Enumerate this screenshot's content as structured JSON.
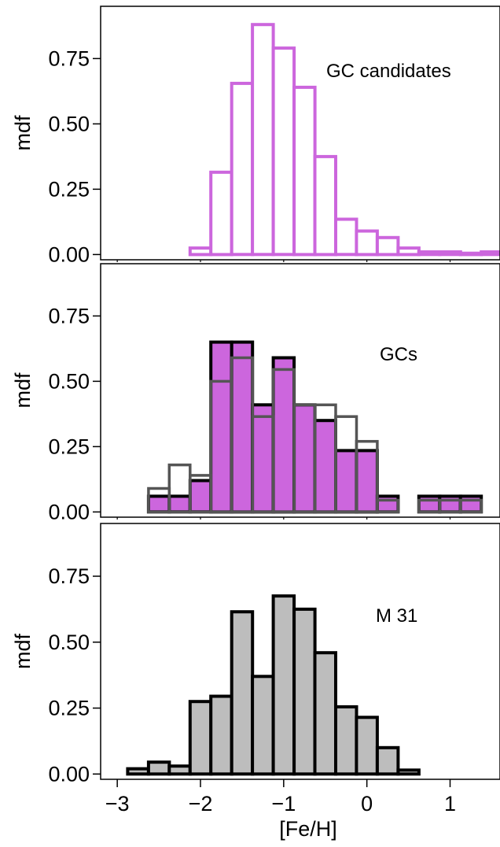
{
  "figure": {
    "xlabel": "[Fe/H]",
    "xlim": [
      -3.2,
      1.6
    ],
    "xticks": [
      -3,
      -2,
      -1,
      0,
      1
    ],
    "xtick_labels": [
      "−3",
      "−2",
      "−1",
      "0",
      "1"
    ],
    "ylim": [
      -0.02,
      0.95
    ],
    "yticks": [
      0.0,
      0.25,
      0.5,
      0.75
    ],
    "ytick_labels": [
      "0.00",
      "0.25",
      "0.50",
      "0.75"
    ],
    "ylabel": "mdf"
  },
  "chart_data": [
    {
      "type": "bar",
      "panel": "top",
      "label": "GC candidates",
      "xlabel": "",
      "ylabel": "mdf",
      "bin_edges": [
        -2.125,
        -1.875,
        -1.625,
        -1.375,
        -1.125,
        -0.875,
        -0.625,
        -0.375,
        -0.125,
        0.125,
        0.375,
        0.625,
        0.875,
        1.125,
        1.375,
        1.625
      ],
      "series": [
        {
          "values": [
            0.025,
            0.315,
            0.655,
            0.88,
            0.79,
            0.64,
            0.375,
            0.135,
            0.09,
            0.065,
            0.025,
            0.01,
            0.01,
            0.005,
            0.01
          ],
          "fill": "#ffffff",
          "stroke": "#cc66dd"
        }
      ]
    },
    {
      "type": "bar",
      "panel": "middle",
      "label": "GCs",
      "xlabel": "",
      "ylabel": "mdf",
      "series": [
        {
          "bin_edges": [
            -3.125,
            -2.875,
            -2.625,
            -2.375,
            -2.125,
            -1.875,
            -1.625,
            -1.375,
            -1.125,
            -0.875,
            -0.625,
            -0.375,
            -0.125,
            0.125,
            0.375,
            0.625,
            0.875,
            1.125,
            1.375
          ],
          "values": [
            0.0,
            0.0,
            0.06,
            0.06,
            0.12,
            0.65,
            0.65,
            0.41,
            0.59,
            0.41,
            0.35,
            0.235,
            0.235,
            0.06,
            0.0,
            0.06,
            0.06,
            0.06
          ],
          "fill": "#cc66dd",
          "stroke": "#000000"
        },
        {
          "bin_edges": [
            -2.625,
            -2.375,
            -2.125,
            -1.875,
            -1.625,
            -1.375,
            -1.125,
            -0.875,
            -0.625,
            -0.375,
            -0.125,
            0.125,
            0.375,
            0.625,
            0.875,
            1.125,
            1.375
          ],
          "values": [
            0.09,
            0.18,
            0.14,
            0.5,
            0.59,
            0.365,
            0.545,
            0.41,
            0.41,
            0.365,
            0.27,
            0.045,
            0.0,
            0.045,
            0.045,
            0.045
          ],
          "fill": "none",
          "stroke": "#555555"
        }
      ]
    },
    {
      "type": "bar",
      "panel": "bottom",
      "label": "M 31",
      "xlabel": "[Fe/H]",
      "ylabel": "mdf",
      "bin_edges": [
        -2.875,
        -2.625,
        -2.375,
        -2.125,
        -1.875,
        -1.625,
        -1.375,
        -1.125,
        -0.875,
        -0.625,
        -0.375,
        -0.125,
        0.125,
        0.375,
        0.625
      ],
      "series": [
        {
          "values": [
            0.02,
            0.045,
            0.03,
            0.275,
            0.295,
            0.615,
            0.37,
            0.675,
            0.625,
            0.46,
            0.255,
            0.215,
            0.1,
            0.015
          ],
          "fill": "#bdbdbd",
          "stroke": "#000000"
        }
      ]
    }
  ]
}
